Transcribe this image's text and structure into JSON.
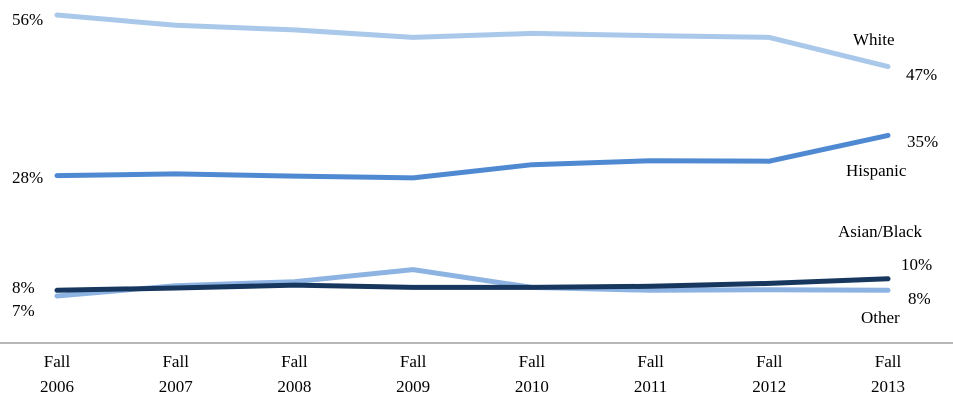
{
  "chart_data": {
    "type": "line",
    "title": "",
    "xlabel": "",
    "ylabel": "",
    "categories": [
      [
        "Fall",
        "2006"
      ],
      [
        "Fall",
        "2007"
      ],
      [
        "Fall",
        "2008"
      ],
      [
        "Fall",
        "2009"
      ],
      [
        "Fall",
        "2010"
      ],
      [
        "Fall",
        "2011"
      ],
      [
        "Fall",
        "2012"
      ],
      [
        "Fall",
        "2013"
      ]
    ],
    "ylim": [
      0,
      60
    ],
    "grid": false,
    "series": [
      {
        "name": "White",
        "color": "#a9c8ea",
        "values": [
          56,
          54.2,
          53.4,
          52.1,
          52.8,
          52.4,
          52.1,
          47
        ],
        "start_label": "56%",
        "end_label": "47%"
      },
      {
        "name": "Hispanic",
        "color": "#4f89d1",
        "values": [
          28,
          28.3,
          27.9,
          27.6,
          29.9,
          30.6,
          30.5,
          35
        ],
        "start_label": "28%",
        "end_label": "35%"
      },
      {
        "name": "Asian/Black",
        "color": "#17375e",
        "values": [
          8,
          8.4,
          8.9,
          8.5,
          8.5,
          8.7,
          9.2,
          10
        ],
        "start_label": "8%",
        "end_label": "10%"
      },
      {
        "name": "Other",
        "color": "#8db3e2",
        "values": [
          7,
          8.8,
          9.5,
          11.6,
          8.5,
          8.0,
          8.1,
          8
        ],
        "start_label": "7%",
        "end_label": "8%"
      }
    ]
  }
}
